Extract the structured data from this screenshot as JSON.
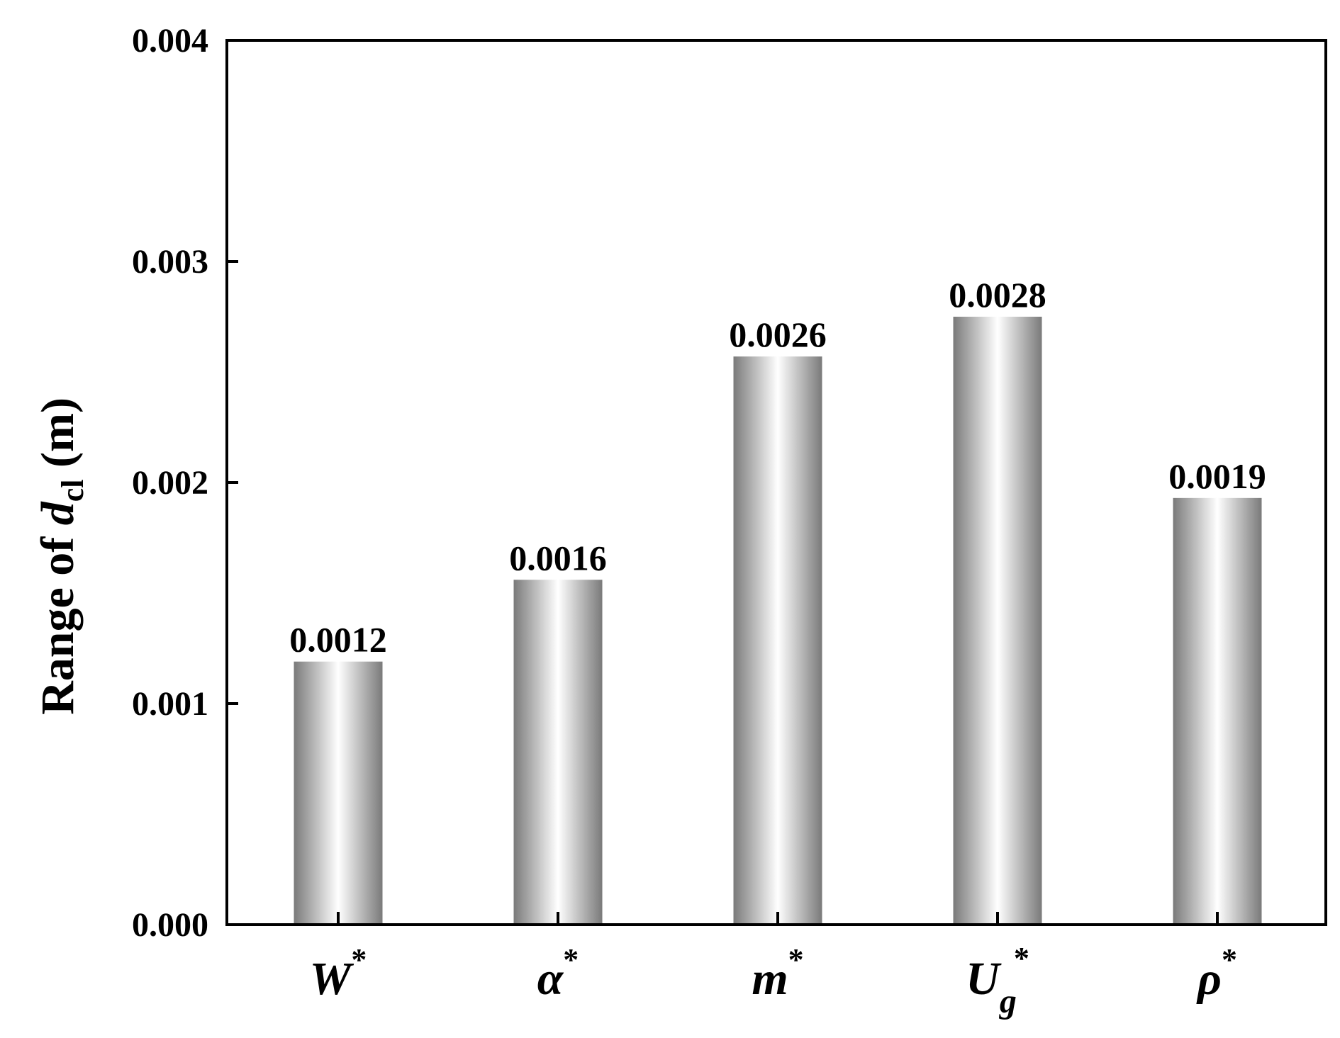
{
  "chart_data": {
    "type": "bar",
    "categories": [
      {
        "base": "W",
        "sup": "*",
        "sub": ""
      },
      {
        "base": "α",
        "sup": "*",
        "sub": ""
      },
      {
        "base": "m",
        "sup": "*",
        "sub": ""
      },
      {
        "base": "U",
        "sup": "*",
        "sub": "g"
      },
      {
        "base": "ρ",
        "sup": "*",
        "sub": ""
      }
    ],
    "values": [
      0.00119,
      0.00156,
      0.00257,
      0.00275,
      0.00193
    ],
    "value_labels": [
      "0.0012",
      "0.0016",
      "0.0026",
      "0.0028",
      "0.0019"
    ],
    "ylabel": {
      "prefix": "Range of ",
      "var": "d",
      "sub": "cl",
      "suffix": " (m)"
    },
    "ylim": [
      0,
      0.004
    ],
    "yticks": [
      0,
      0.001,
      0.002,
      0.003,
      0.004
    ],
    "ytick_labels": [
      "0.000",
      "0.001",
      "0.002",
      "0.003",
      "0.004"
    ],
    "grid": false,
    "bar_gradient": [
      "#7a7a7a",
      "#ffffff",
      "#7a7a7a"
    ]
  }
}
